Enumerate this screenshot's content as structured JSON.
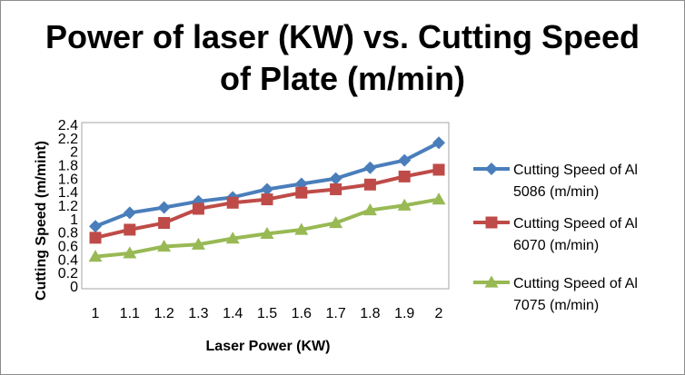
{
  "chart_data": {
    "type": "line",
    "title_line1": "Power of laser (KW) vs. Cutting Speed",
    "title_line2": "of Plate (m/min)",
    "xlabel": "Laser Power (KW)",
    "ylabel": "Cutting Speed (m/mint)",
    "categories": [
      "1",
      "1.1",
      "1.2",
      "1.3",
      "1.4",
      "1.5",
      "1.6",
      "1.7",
      "1.8",
      "1.9",
      "2"
    ],
    "y_ticks": [
      "0",
      "0.2",
      "0.4",
      "0.6",
      "0.8",
      "1",
      "1.2",
      "1.4",
      "1.6",
      "1.8",
      "2",
      "2.2",
      "2.4"
    ],
    "ylim": [
      0,
      2.4
    ],
    "grid": false,
    "legend_position": "right",
    "series": [
      {
        "name_line1": "Cutting  Speed of Al",
        "name_line2": "5086 (m/min)",
        "marker": "diamond",
        "color": "#4a7ebb",
        "values": [
          0.9,
          1.1,
          1.18,
          1.27,
          1.33,
          1.45,
          1.53,
          1.61,
          1.77,
          1.88,
          2.14
        ]
      },
      {
        "name_line1": "Cutting  Speed of Al",
        "name_line2": "6070 (m/min)",
        "marker": "square",
        "color": "#be4b48",
        "values": [
          0.73,
          0.85,
          0.95,
          1.16,
          1.25,
          1.3,
          1.4,
          1.45,
          1.52,
          1.64,
          1.74
        ]
      },
      {
        "name_line1": "Cutting  Speed of Al",
        "name_line2": "7075 (m/min)",
        "marker": "triangle",
        "color": "#98b954",
        "values": [
          0.45,
          0.5,
          0.6,
          0.63,
          0.72,
          0.79,
          0.85,
          0.95,
          1.14,
          1.21,
          1.3
        ]
      }
    ]
  }
}
